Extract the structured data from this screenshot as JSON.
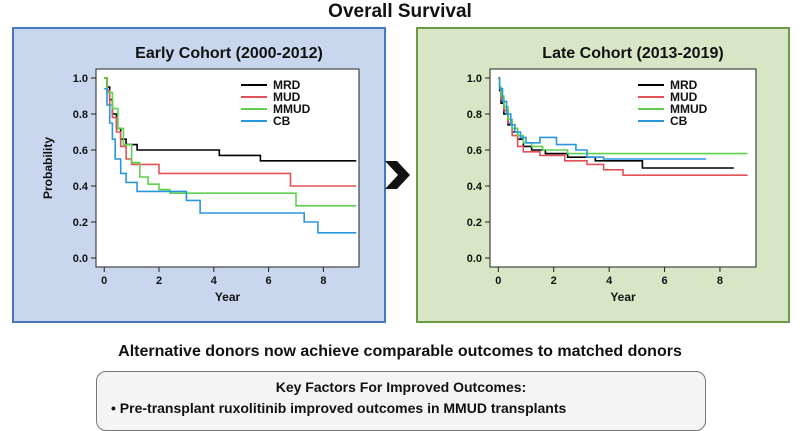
{
  "title": "Overall Survival",
  "conclusion": "Alternative donors now achieve comparable outcomes to matched donors",
  "key_factors": {
    "title": "Key Factors For Improved Outcomes:",
    "bullet": "•",
    "items": [
      "Pre-transplant ruxolitinib improved outcomes in MMUD transplants"
    ]
  },
  "colors": {
    "MRD": "#000000",
    "MUD": "#e05258",
    "MMUD": "#5fd14e",
    "CB": "#2a96dd",
    "early_bg": "#c9d7ee",
    "late_bg": "#d8e6c6"
  },
  "chart_data": [
    {
      "type": "line",
      "step": true,
      "title": "Early Cohort (2000-2012)",
      "xlabel": "Year",
      "ylabel": "Probability",
      "xlim": [
        -0.3,
        9.3
      ],
      "ylim": [
        -0.05,
        1.05
      ],
      "xticks": [
        "0",
        "2",
        "4",
        "6",
        "8"
      ],
      "yticks": [
        "0.0",
        "0.2",
        "0.4",
        "0.6",
        "0.8",
        "1.0"
      ],
      "legend": [
        "MRD",
        "MUD",
        "MMUD",
        "CB"
      ],
      "series": [
        {
          "name": "MRD",
          "points": [
            [
              0,
              1.0
            ],
            [
              0.1,
              0.95
            ],
            [
              0.2,
              0.88
            ],
            [
              0.3,
              0.8
            ],
            [
              0.45,
              0.72
            ],
            [
              0.6,
              0.66
            ],
            [
              0.8,
              0.63
            ],
            [
              1.2,
              0.6
            ],
            [
              4.2,
              0.57
            ],
            [
              5.7,
              0.54
            ],
            [
              9.2,
              0.54
            ]
          ]
        },
        {
          "name": "MUD",
          "points": [
            [
              0,
              1.0
            ],
            [
              0.1,
              0.93
            ],
            [
              0.2,
              0.85
            ],
            [
              0.3,
              0.78
            ],
            [
              0.45,
              0.7
            ],
            [
              0.6,
              0.62
            ],
            [
              0.8,
              0.55
            ],
            [
              1.0,
              0.52
            ],
            [
              2.0,
              0.47
            ],
            [
              3.0,
              0.47
            ],
            [
              5.5,
              0.47
            ],
            [
              6.8,
              0.4
            ],
            [
              9.2,
              0.4
            ]
          ]
        },
        {
          "name": "MMUD",
          "points": [
            [
              0,
              1.0
            ],
            [
              0.1,
              0.92
            ],
            [
              0.3,
              0.83
            ],
            [
              0.5,
              0.72
            ],
            [
              0.7,
              0.63
            ],
            [
              1.0,
              0.53
            ],
            [
              1.3,
              0.45
            ],
            [
              1.6,
              0.41
            ],
            [
              2.0,
              0.38
            ],
            [
              2.4,
              0.36
            ],
            [
              7.0,
              0.29
            ],
            [
              9.2,
              0.29
            ]
          ]
        },
        {
          "name": "CB",
          "points": [
            [
              0,
              0.94
            ],
            [
              0.1,
              0.85
            ],
            [
              0.2,
              0.75
            ],
            [
              0.3,
              0.66
            ],
            [
              0.4,
              0.55
            ],
            [
              0.6,
              0.47
            ],
            [
              0.8,
              0.42
            ],
            [
              1.2,
              0.37
            ],
            [
              3.0,
              0.32
            ],
            [
              3.5,
              0.25
            ],
            [
              5.5,
              0.25
            ],
            [
              7.3,
              0.2
            ],
            [
              7.8,
              0.14
            ],
            [
              9.2,
              0.14
            ]
          ]
        }
      ]
    },
    {
      "type": "line",
      "step": true,
      "title": "Late Cohort (2013-2019)",
      "xlabel": "Year",
      "ylabel": "",
      "xlim": [
        -0.3,
        9.3
      ],
      "ylim": [
        -0.05,
        1.05
      ],
      "xticks": [
        "0",
        "2",
        "4",
        "6",
        "8"
      ],
      "yticks": [
        "0.0",
        "0.2",
        "0.4",
        "0.6",
        "0.8",
        "1.0"
      ],
      "legend": [
        "MRD",
        "MUD",
        "MMUD",
        "CB"
      ],
      "series": [
        {
          "name": "MRD",
          "points": [
            [
              0,
              1.0
            ],
            [
              0.05,
              0.93
            ],
            [
              0.1,
              0.86
            ],
            [
              0.2,
              0.8
            ],
            [
              0.35,
              0.74
            ],
            [
              0.5,
              0.7
            ],
            [
              0.7,
              0.66
            ],
            [
              0.9,
              0.62
            ],
            [
              1.2,
              0.6
            ],
            [
              1.7,
              0.58
            ],
            [
              2.5,
              0.56
            ],
            [
              3.5,
              0.54
            ],
            [
              5.2,
              0.5
            ],
            [
              8.5,
              0.5
            ]
          ]
        },
        {
          "name": "MUD",
          "points": [
            [
              0,
              1.0
            ],
            [
              0.05,
              0.94
            ],
            [
              0.1,
              0.88
            ],
            [
              0.2,
              0.82
            ],
            [
              0.35,
              0.75
            ],
            [
              0.5,
              0.68
            ],
            [
              0.7,
              0.62
            ],
            [
              0.9,
              0.59
            ],
            [
              1.5,
              0.57
            ],
            [
              2.4,
              0.54
            ],
            [
              3.2,
              0.52
            ],
            [
              3.8,
              0.49
            ],
            [
              4.5,
              0.46
            ],
            [
              9.0,
              0.46
            ]
          ]
        },
        {
          "name": "MMUD",
          "points": [
            [
              0,
              1.0
            ],
            [
              0.05,
              0.95
            ],
            [
              0.1,
              0.9
            ],
            [
              0.2,
              0.84
            ],
            [
              0.35,
              0.77
            ],
            [
              0.5,
              0.72
            ],
            [
              0.7,
              0.68
            ],
            [
              0.9,
              0.64
            ],
            [
              1.2,
              0.62
            ],
            [
              1.6,
              0.6
            ],
            [
              2.5,
              0.58
            ],
            [
              9.0,
              0.58
            ]
          ]
        },
        {
          "name": "CB",
          "points": [
            [
              0,
              1.0
            ],
            [
              0.05,
              0.94
            ],
            [
              0.15,
              0.87
            ],
            [
              0.3,
              0.8
            ],
            [
              0.45,
              0.74
            ],
            [
              0.6,
              0.7
            ],
            [
              0.8,
              0.67
            ],
            [
              1.0,
              0.64
            ],
            [
              1.5,
              0.67
            ],
            [
              2.1,
              0.63
            ],
            [
              2.8,
              0.6
            ],
            [
              3.2,
              0.56
            ],
            [
              3.8,
              0.55
            ],
            [
              7.5,
              0.55
            ]
          ]
        }
      ]
    }
  ]
}
